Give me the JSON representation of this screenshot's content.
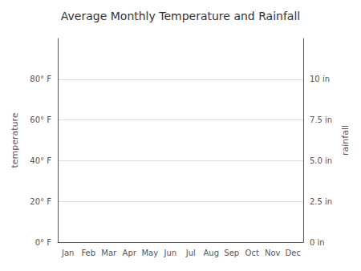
{
  "chart_data": {
    "type": "line",
    "title": "Average Monthly Temperature and Rainfall",
    "categories": [
      "Jan",
      "Feb",
      "Mar",
      "Apr",
      "May",
      "Jun",
      "Jul",
      "Aug",
      "Sep",
      "Oct",
      "Nov",
      "Dec"
    ],
    "series": [],
    "ylabel": "temperature",
    "y2label": "rainfall",
    "ylim": [
      0,
      100
    ],
    "yticks": [
      {
        "value": 0,
        "label": "0° F"
      },
      {
        "value": 20,
        "label": "20° F"
      },
      {
        "value": 40,
        "label": "40° F"
      },
      {
        "value": 60,
        "label": "60° F"
      },
      {
        "value": 80,
        "label": "80° F"
      }
    ],
    "y2lim": [
      0,
      12.5
    ],
    "y2ticks": [
      {
        "value": 0,
        "label": "0 in"
      },
      {
        "value": 2.5,
        "label": "2.5 in"
      },
      {
        "value": 5.0,
        "label": "5.0 in"
      },
      {
        "value": 7.5,
        "label": "7.5 in"
      },
      {
        "value": 10.0,
        "label": "10 in"
      }
    ],
    "grid": true
  }
}
